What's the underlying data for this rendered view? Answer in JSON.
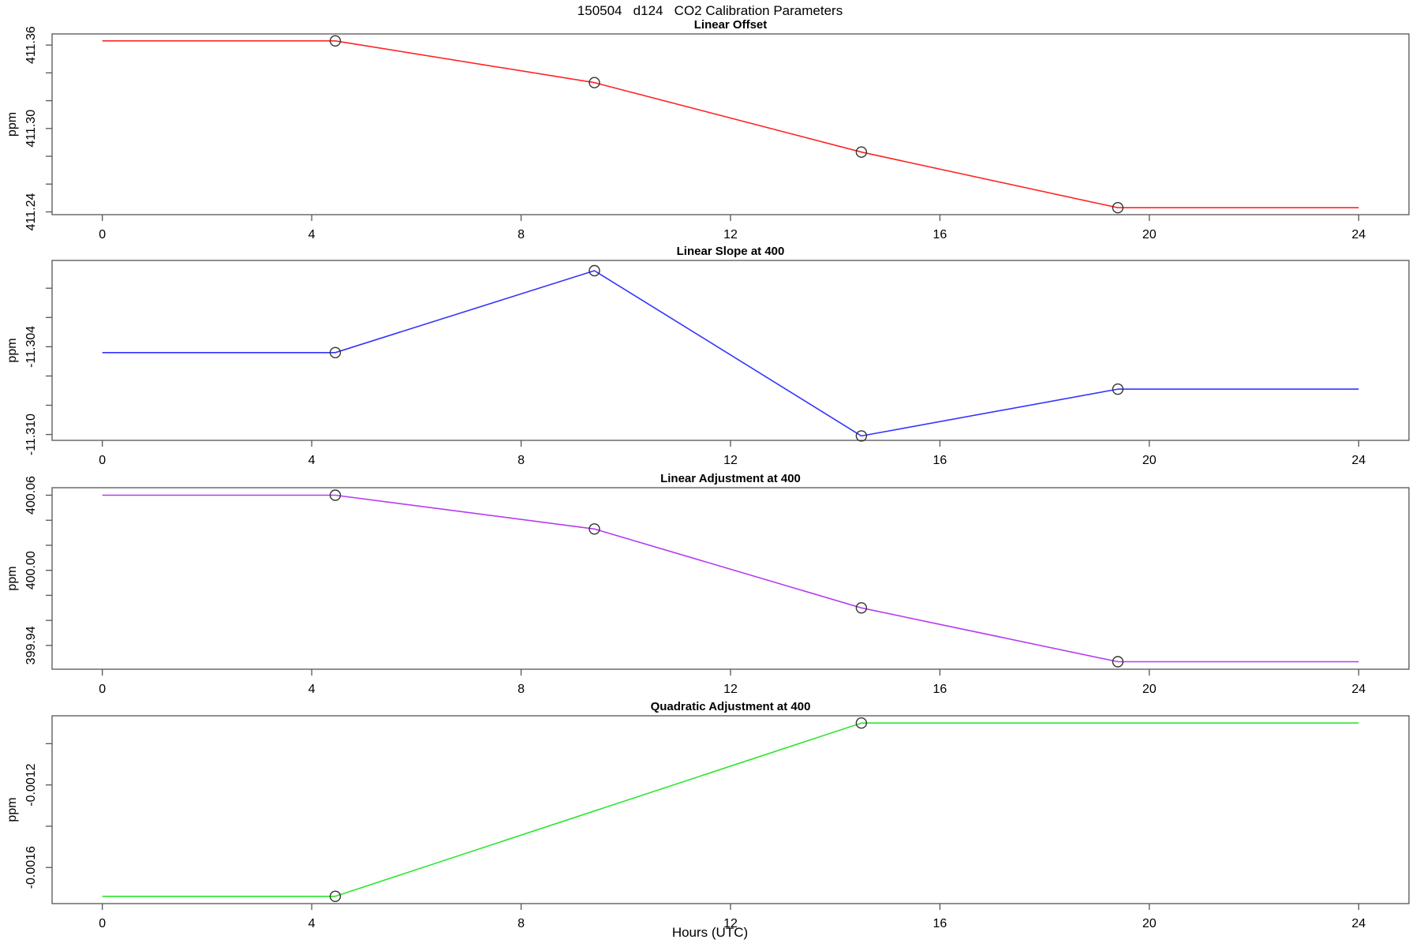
{
  "header": {
    "title": "150504   d124   CO2 Calibration Parameters"
  },
  "x_axis": {
    "label": "Hours (UTC)",
    "ticks": [
      0,
      4,
      8,
      12,
      16,
      20,
      24
    ],
    "tick_labels": [
      "0",
      "4",
      "8",
      "12",
      "16",
      "20",
      "24"
    ],
    "lim": [
      -0.96,
      24.96
    ]
  },
  "style": {
    "axis_color": "#555555",
    "text_color": "#000000",
    "marker_color": "#333333"
  },
  "chart_data": [
    {
      "type": "line",
      "title": "Linear Offset",
      "ylabel": "ppm",
      "color": "#ff2424",
      "x": [
        0,
        4.45,
        9.4,
        14.5,
        19.4,
        24
      ],
      "y": [
        411.363,
        411.363,
        411.333,
        411.283,
        411.243,
        411.243
      ],
      "markers": {
        "x": [
          4.45,
          9.4,
          14.5,
          19.4
        ],
        "y": [
          411.363,
          411.333,
          411.283,
          411.243
        ]
      },
      "yticks": [
        411.24,
        411.26,
        411.28,
        411.3,
        411.32,
        411.34,
        411.36
      ],
      "ytick_labels": [
        "411.24",
        "",
        "",
        "411.30",
        "",
        "",
        "411.36"
      ],
      "ylim": [
        411.238,
        411.368
      ],
      "grid": false
    },
    {
      "type": "line",
      "title": "Linear Slope at 400",
      "ylabel": "ppm",
      "color": "#3333ff",
      "x": [
        0,
        4.45,
        9.4,
        14.5,
        19.4,
        24
      ],
      "y": [
        -11.3044,
        -11.3044,
        -11.2988,
        -11.3101,
        -11.3069,
        -11.3069
      ],
      "markers": {
        "x": [
          4.45,
          9.4,
          14.5,
          19.4
        ],
        "y": [
          -11.3044,
          -11.2988,
          -11.3101,
          -11.3069
        ]
      },
      "yticks": [
        -11.31,
        -11.308,
        -11.306,
        -11.304,
        -11.302,
        -11.3
      ],
      "ytick_labels": [
        "-11.310",
        "",
        "",
        "-11.304",
        "",
        ""
      ],
      "ylim": [
        -11.3104,
        -11.2981
      ],
      "grid": false
    },
    {
      "type": "line",
      "title": "Linear Adjustment at 400",
      "ylabel": "ppm",
      "color": "#b43df0",
      "x": [
        0,
        4.45,
        9.4,
        14.5,
        19.4,
        24
      ],
      "y": [
        400.06,
        400.06,
        400.033,
        399.97,
        399.927,
        399.927
      ],
      "markers": {
        "x": [
          4.45,
          9.4,
          14.5,
          19.4
        ],
        "y": [
          400.06,
          400.033,
          399.97,
          399.927
        ]
      },
      "yticks": [
        399.94,
        399.96,
        399.98,
        400.0,
        400.02,
        400.04,
        400.06
      ],
      "ytick_labels": [
        "399.94",
        "",
        "",
        "400.00",
        "",
        "",
        "400.06"
      ],
      "ylim": [
        399.921,
        400.066
      ],
      "grid": false
    },
    {
      "type": "line",
      "title": "Quadratic Adjustment at 400",
      "ylabel": "ppm",
      "color": "#2ee62e",
      "x": [
        0,
        4.45,
        14.5,
        24
      ],
      "y": [
        -0.00174,
        -0.00174,
        -0.0009,
        -0.0009
      ],
      "markers": {
        "x": [
          4.45,
          14.5
        ],
        "y": [
          -0.00174,
          -0.0009
        ]
      },
      "yticks": [
        -0.0016,
        -0.0014,
        -0.0012,
        -0.001
      ],
      "ytick_labels": [
        "-0.0016",
        "",
        "-0.0012",
        ""
      ],
      "ylim": [
        -0.001775,
        -0.000865
      ],
      "grid": false
    }
  ]
}
